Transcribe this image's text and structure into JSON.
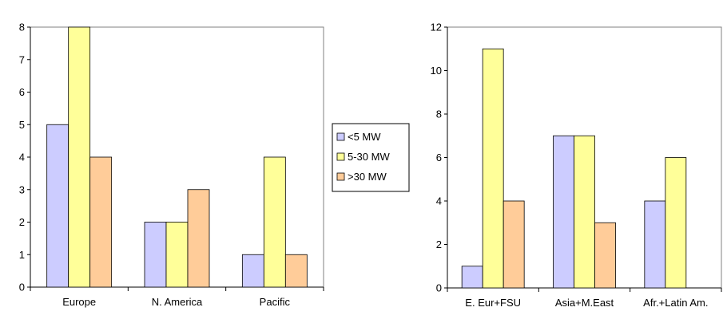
{
  "chart_data": [
    {
      "type": "bar",
      "categories": [
        "Europe",
        "N. America",
        "Pacific"
      ],
      "series": [
        {
          "name": "<5 MW",
          "values": [
            5,
            2,
            1
          ]
        },
        {
          "name": "5-30 MW",
          "values": [
            8,
            2,
            4
          ]
        },
        {
          "name": ">30 MW",
          "values": [
            4,
            3,
            1
          ]
        }
      ],
      "ylim": [
        0,
        8
      ],
      "yticks": [
        0,
        1,
        2,
        3,
        4,
        5,
        6,
        7,
        8
      ],
      "grid": false,
      "legend": "right"
    },
    {
      "type": "bar",
      "categories": [
        "E. Eur+FSU",
        "Asia+M.East",
        "Afr.+Latin Am."
      ],
      "series": [
        {
          "name": "<5 MW",
          "values": [
            1,
            7,
            4
          ]
        },
        {
          "name": "5-30 MW",
          "values": [
            11,
            7,
            6
          ]
        },
        {
          "name": ">30 MW",
          "values": [
            4,
            3,
            0
          ]
        }
      ],
      "ylim": [
        0,
        12
      ],
      "yticks": [
        0,
        2,
        4,
        6,
        8,
        10,
        12
      ],
      "grid": false,
      "legend": "none"
    }
  ],
  "legend": {
    "items": [
      {
        "label": "<5 MW",
        "color": "#ccccff"
      },
      {
        "label": "5-30 MW",
        "color": "#ffff99"
      },
      {
        "label": ">30 MW",
        "color": "#ffcc99"
      }
    ]
  },
  "colors": {
    "series": [
      "#ccccff",
      "#ffff99",
      "#ffcc99"
    ],
    "outline": "#000000",
    "plot_border": "#808080"
  }
}
